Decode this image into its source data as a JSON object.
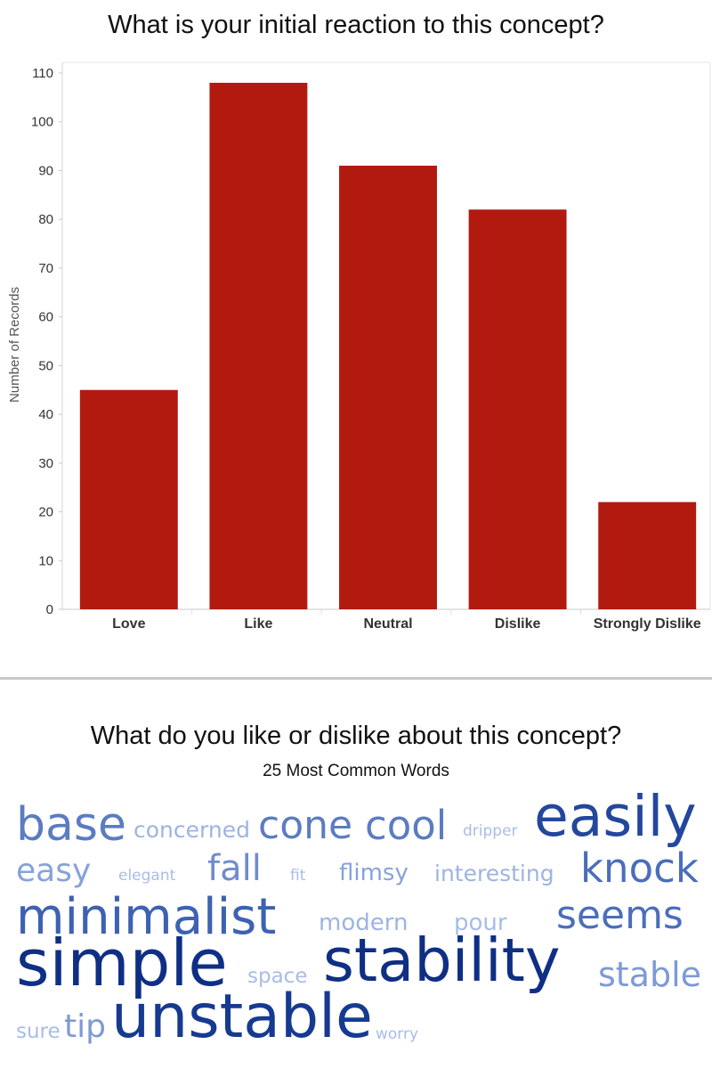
{
  "chart_data": {
    "type": "bar",
    "title": "What is your initial reaction to this concept?",
    "ylabel": "Number of Records",
    "xlabel": "",
    "categories": [
      "Love",
      "Like",
      "Neutral",
      "Dislike",
      "Strongly Dislike"
    ],
    "values": [
      45,
      108,
      91,
      82,
      22
    ],
    "ylim": [
      0,
      110
    ],
    "yticks": [
      0,
      10,
      20,
      30,
      40,
      50,
      60,
      70,
      80,
      90,
      100,
      110
    ],
    "bar_color": "#b21a10",
    "grid": false,
    "legend": "none"
  },
  "word_cloud": {
    "title": "What do you like or dislike about this concept?",
    "subtitle": "25 Most Common Words",
    "words": [
      {
        "text": "base",
        "color": "#5b7cc0"
      },
      {
        "text": "concerned",
        "color": "#9db4e2"
      },
      {
        "text": "cone",
        "color": "#5b7cc0"
      },
      {
        "text": "cool",
        "color": "#5b7cc0"
      },
      {
        "text": "dripper",
        "color": "#a8bde6"
      },
      {
        "text": "easily",
        "color": "#23479c"
      },
      {
        "text": "easy",
        "color": "#87a2da"
      },
      {
        "text": "elegant",
        "color": "#a8bde6"
      },
      {
        "text": "fall",
        "color": "#6f8dcd"
      },
      {
        "text": "fit",
        "color": "#a8bde6"
      },
      {
        "text": "flimsy",
        "color": "#87a2da"
      },
      {
        "text": "interesting",
        "color": "#9db4e2"
      },
      {
        "text": "knock",
        "color": "#4b6ebb"
      },
      {
        "text": "minimalist",
        "color": "#3d62b2"
      },
      {
        "text": "modern",
        "color": "#9db4e2"
      },
      {
        "text": "pour",
        "color": "#a8bde6"
      },
      {
        "text": "seems",
        "color": "#4b6ebb"
      },
      {
        "text": "simple",
        "color": "#0f2f85"
      },
      {
        "text": "space",
        "color": "#a8bde6"
      },
      {
        "text": "stability",
        "color": "#0f2f85"
      },
      {
        "text": "stable",
        "color": "#7d9ad6"
      },
      {
        "text": "sure",
        "color": "#a8bde6"
      },
      {
        "text": "tip",
        "color": "#7d9ad6"
      },
      {
        "text": "unstable",
        "color": "#173a91"
      },
      {
        "text": "worry",
        "color": "#a8bde6"
      }
    ]
  }
}
